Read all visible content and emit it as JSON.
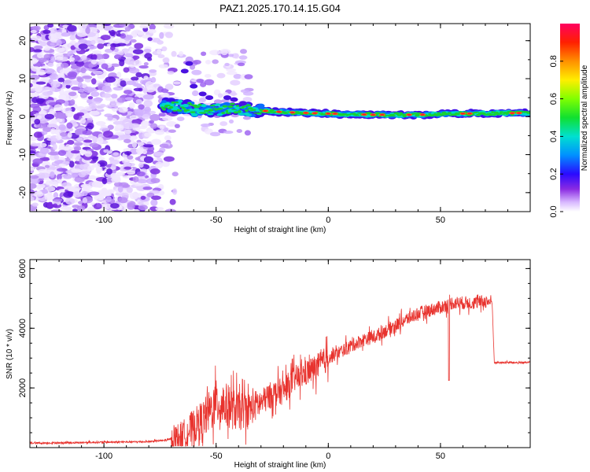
{
  "title": "PAZ1.2025.170.14.15.G04",
  "colors": {
    "snr_line": "#e8332e",
    "axis": "#000000"
  },
  "chart_data": [
    {
      "type": "heatmap",
      "title": "PAZ1.2025.170.14.15.G04",
      "xlabel": "Height of straight line (km)",
      "ylabel": "Frequency (Hz)",
      "xlim": [
        -133,
        90
      ],
      "ylim": [
        -25,
        24.5
      ],
      "x_ticks": [
        -100,
        -50,
        0,
        50
      ],
      "x_tick_labels": [
        "-100",
        "-50",
        "0",
        "50"
      ],
      "y_ticks": [
        -20,
        -10,
        0,
        10,
        20
      ],
      "y_tick_labels": [
        "-20",
        "-10",
        "0",
        "10",
        "20"
      ],
      "colorbar": {
        "label": "Normalized spectral amplitude",
        "range": [
          0,
          1
        ],
        "ticks": [
          0.0,
          0.2,
          0.4,
          0.6,
          0.8
        ],
        "tick_labels": [
          "0.0",
          "0.2",
          "0.4",
          "0.6",
          "0.8"
        ],
        "colormap": "rainbow"
      },
      "ridge": {
        "description_points": [
          {
            "x": -74,
            "y": 3.0
          },
          {
            "x": -65,
            "y": 2.5
          },
          {
            "x": -55,
            "y": 1.5
          },
          {
            "x": -45,
            "y": 2.0
          },
          {
            "x": -35,
            "y": 1.8
          },
          {
            "x": -20,
            "y": 1.2
          },
          {
            "x": 0,
            "y": 0.8
          },
          {
            "x": 20,
            "y": 0.5
          },
          {
            "x": 40,
            "y": 0.5
          },
          {
            "x": 60,
            "y": 0.8
          },
          {
            "x": 90,
            "y": 1.0
          }
        ]
      }
    },
    {
      "type": "line",
      "xlabel": "Height of straight line (km)",
      "ylabel": "SNR (10 * v/v)",
      "xlim": [
        -133,
        90
      ],
      "ylim": [
        0,
        6300
      ],
      "x_ticks": [
        -100,
        -50,
        0,
        50
      ],
      "x_tick_labels": [
        "-100",
        "-50",
        "0",
        "50"
      ],
      "y_ticks": [
        2000,
        4000,
        6000
      ],
      "y_tick_labels": [
        "2000",
        "4000",
        "6000"
      ],
      "series": [
        {
          "x": [
            -133,
            -120,
            -100,
            -80,
            -72,
            -65,
            -60,
            -55,
            -50,
            -45,
            -40,
            -35,
            -30,
            -25,
            -20,
            -15,
            -10,
            -5,
            0,
            5,
            10,
            15,
            20,
            25,
            30,
            35,
            40,
            45,
            50,
            55,
            60,
            65,
            70,
            73,
            74,
            80,
            90
          ],
          "y": [
            150,
            160,
            180,
            200,
            250,
            400,
            700,
            1000,
            1500,
            1400,
            1200,
            1300,
            1500,
            1800,
            1900,
            2300,
            2500,
            2700,
            3000,
            3200,
            3400,
            3600,
            3700,
            3900,
            4100,
            4300,
            4500,
            4600,
            4700,
            4850,
            4850,
            4850,
            4900,
            4900,
            2850,
            2850,
            2850
          ]
        }
      ]
    }
  ]
}
